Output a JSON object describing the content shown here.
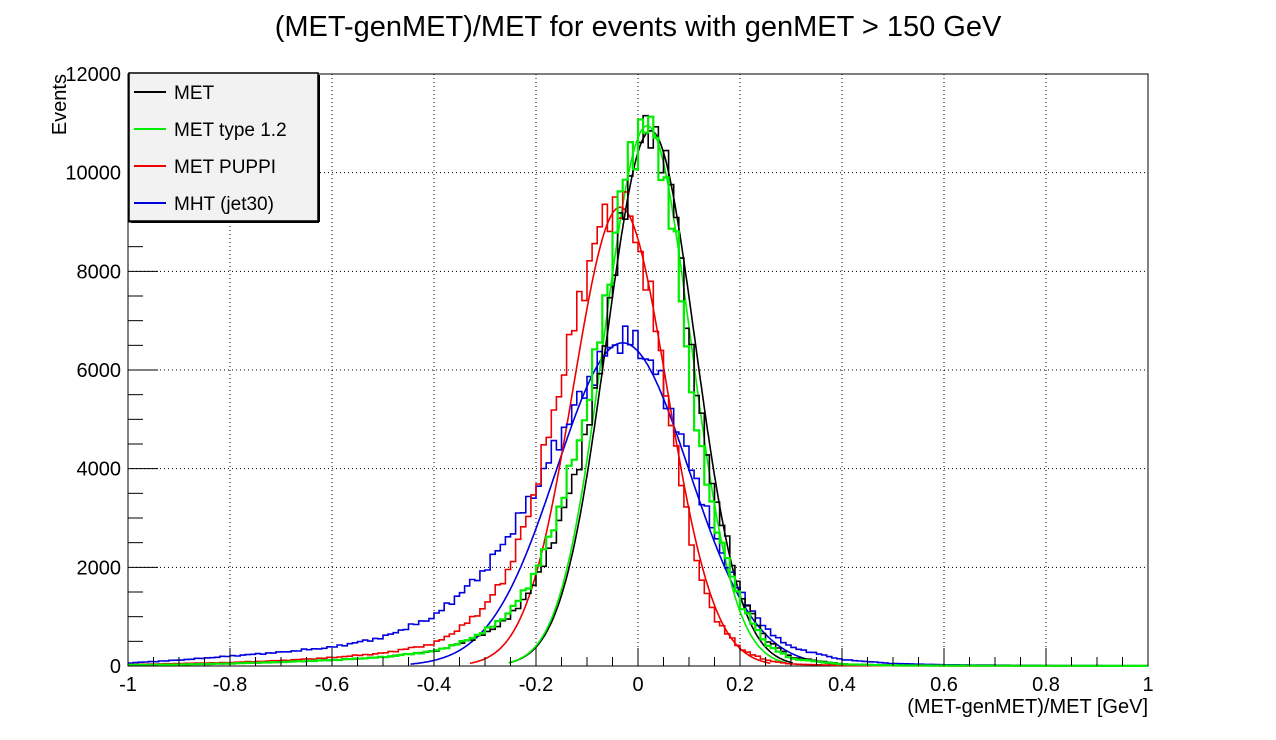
{
  "chart_data": {
    "type": "line",
    "title": "(MET-genMET)/MET for events with genMET > 150 GeV",
    "xlabel": "(MET-genMET)/MET [GeV]",
    "ylabel": "Events",
    "xlim": [
      -1,
      1
    ],
    "ylim": [
      0,
      12000
    ],
    "grid": true,
    "legend_position": "top-left",
    "x_ticks": [
      "-1",
      "-0.8",
      "-0.6",
      "-0.4",
      "-0.2",
      "0",
      "0.2",
      "0.4",
      "0.6",
      "0.8",
      "1"
    ],
    "y_ticks": [
      "0",
      "2000",
      "4000",
      "6000",
      "8000",
      "10000",
      "12000"
    ],
    "series": [
      {
        "name": "MET",
        "color": "#000000",
        "style": "histogram",
        "fit": {
          "mean": 0.025,
          "sigma": 0.087,
          "peak": 10850
        },
        "x": [
          -1.0,
          -0.9,
          -0.8,
          -0.7,
          -0.6,
          -0.5,
          -0.4,
          -0.35,
          -0.3,
          -0.25,
          -0.2,
          -0.15,
          -0.1,
          -0.08,
          -0.06,
          -0.04,
          -0.02,
          0.0,
          0.02,
          0.04,
          0.06,
          0.08,
          0.1,
          0.12,
          0.15,
          0.2,
          0.25,
          0.3,
          0.4,
          0.5,
          0.6,
          0.8,
          1.0
        ],
        "y": [
          20,
          30,
          50,
          80,
          120,
          180,
          300,
          450,
          650,
          1000,
          1700,
          3000,
          4700,
          5700,
          7000,
          8400,
          9700,
          10500,
          10800,
          10700,
          10000,
          8700,
          6700,
          5200,
          3500,
          1500,
          550,
          180,
          40,
          15,
          10,
          5,
          3
        ]
      },
      {
        "name": "MET type 1.2",
        "color": "#00ee00",
        "style": "histogram",
        "fit": {
          "mean": 0.018,
          "sigma": 0.085,
          "peak": 10950
        },
        "x": [
          -1.0,
          -0.9,
          -0.8,
          -0.7,
          -0.6,
          -0.5,
          -0.4,
          -0.35,
          -0.3,
          -0.25,
          -0.2,
          -0.15,
          -0.1,
          -0.08,
          -0.06,
          -0.04,
          -0.02,
          0.0,
          0.02,
          0.04,
          0.06,
          0.08,
          0.1,
          0.12,
          0.15,
          0.2,
          0.25,
          0.3,
          0.4,
          0.5,
          0.6,
          0.8,
          1.0
        ],
        "y": [
          20,
          30,
          50,
          80,
          120,
          180,
          300,
          460,
          700,
          1100,
          1900,
          3300,
          5200,
          6400,
          7700,
          9100,
          10200,
          10800,
          10950,
          10500,
          9500,
          8000,
          6000,
          4500,
          3000,
          1300,
          450,
          150,
          35,
          12,
          8,
          4,
          2
        ]
      },
      {
        "name": "MET PUPPI",
        "color": "#ee0000",
        "style": "histogram",
        "fit": {
          "mean": -0.035,
          "sigma": 0.092,
          "peak": 9300
        },
        "x": [
          -1.0,
          -0.9,
          -0.8,
          -0.7,
          -0.6,
          -0.5,
          -0.4,
          -0.35,
          -0.3,
          -0.25,
          -0.2,
          -0.15,
          -0.1,
          -0.08,
          -0.06,
          -0.04,
          -0.02,
          0.0,
          0.02,
          0.04,
          0.06,
          0.08,
          0.1,
          0.12,
          0.15,
          0.2,
          0.25,
          0.3,
          0.4,
          0.5,
          0.6,
          0.8,
          1.0
        ],
        "y": [
          30,
          50,
          70,
          110,
          170,
          260,
          450,
          750,
          1200,
          2000,
          3600,
          5800,
          8000,
          8700,
          9200,
          9400,
          9200,
          8600,
          7700,
          6600,
          5300,
          4000,
          2800,
          1900,
          1000,
          350,
          120,
          40,
          10,
          5,
          3,
          2,
          1
        ]
      },
      {
        "name": "MHT (jet30)",
        "color": "#0000dd",
        "style": "histogram",
        "fit": {
          "mean": -0.03,
          "sigma": 0.13,
          "peak": 6550
        },
        "x": [
          -1.0,
          -0.9,
          -0.8,
          -0.7,
          -0.6,
          -0.5,
          -0.4,
          -0.35,
          -0.3,
          -0.25,
          -0.2,
          -0.15,
          -0.1,
          -0.08,
          -0.06,
          -0.04,
          -0.02,
          0.0,
          0.02,
          0.04,
          0.06,
          0.08,
          0.1,
          0.12,
          0.15,
          0.2,
          0.25,
          0.3,
          0.4,
          0.5,
          0.6,
          0.8,
          1.0
        ],
        "y": [
          60,
          120,
          200,
          280,
          380,
          580,
          1000,
          1450,
          1950,
          2700,
          3600,
          4700,
          5700,
          6050,
          6350,
          6600,
          6650,
          6500,
          6250,
          5850,
          5300,
          4750,
          4200,
          3600,
          2650,
          1500,
          750,
          380,
          130,
          50,
          25,
          10,
          5
        ]
      }
    ]
  }
}
